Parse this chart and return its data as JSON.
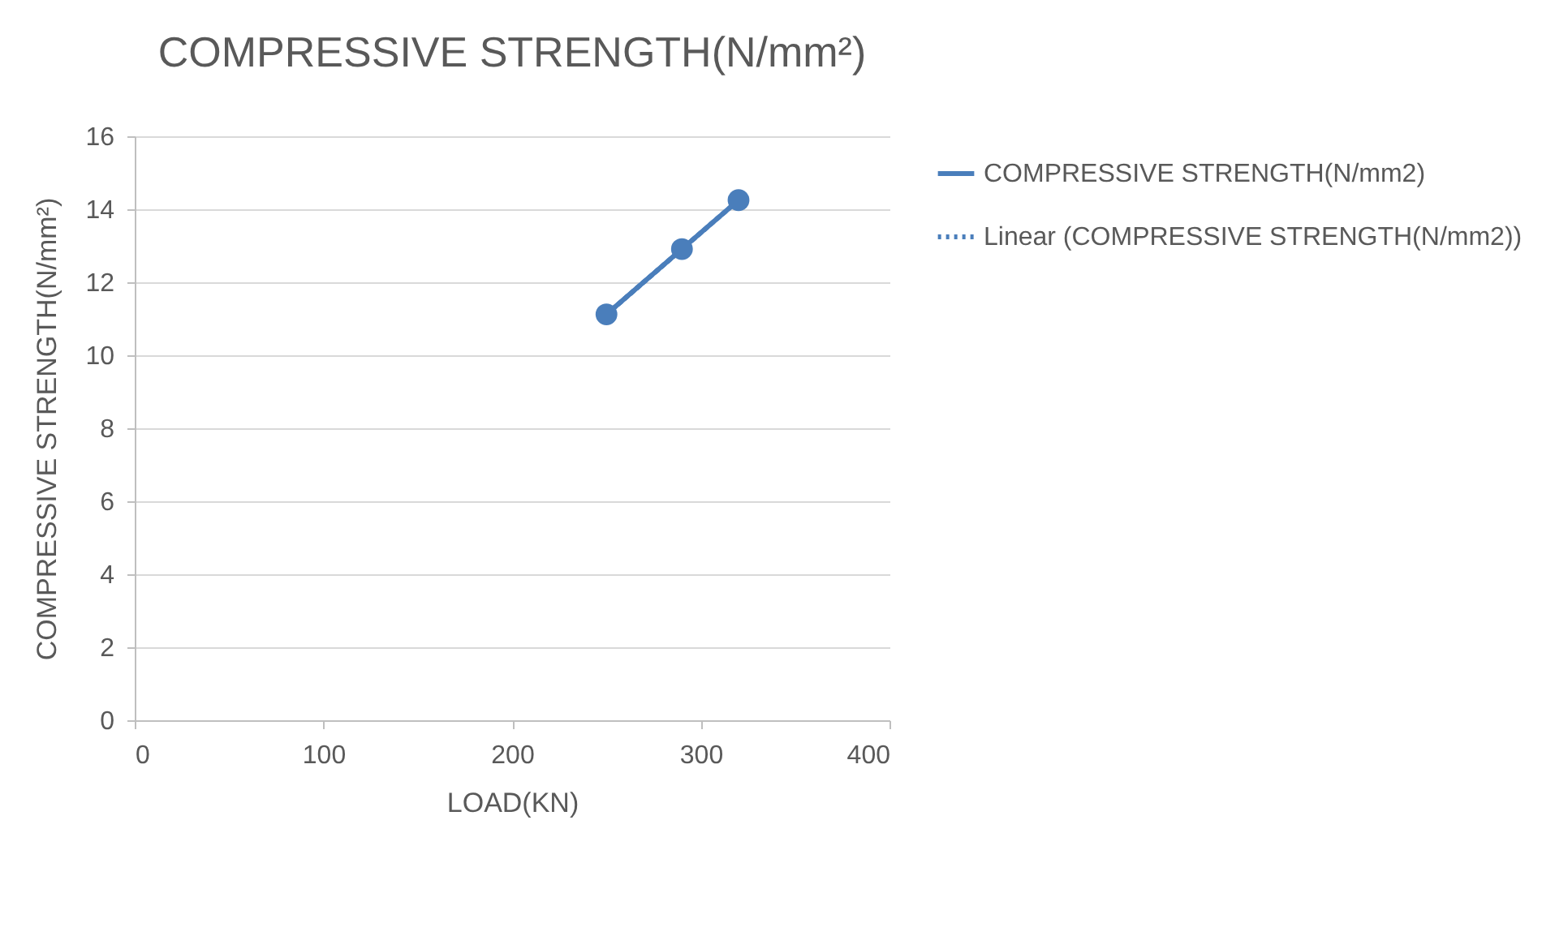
{
  "chart_data": {
    "type": "line",
    "title": "COMPRESSIVE STRENGTH(N/mm²)",
    "xlabel": "LOAD(KN)",
    "ylabel": "COMPRESSIVE STRENGTH(N/mm²)",
    "x": [
      250,
      290,
      320
    ],
    "series": [
      {
        "name": "COMPRESSIVE STRENGTH(N/mm2)",
        "color": "#4a7ebb",
        "values": [
          11.12,
          12.91,
          14.25
        ]
      },
      {
        "name": "Linear (COMPRESSIVE STRENGTH(N/mm2))",
        "color": "#4a7ebb",
        "x": [
          250,
          320
        ],
        "values": [
          11.12,
          14.25
        ],
        "line_style": "dotted",
        "marker": "none"
      }
    ],
    "xlim": [
      0,
      400
    ],
    "xticks": [
      0,
      100,
      200,
      300,
      400
    ],
    "ylim": [
      0,
      16
    ],
    "yticks": [
      0,
      2,
      4,
      6,
      8,
      10,
      12,
      14,
      16
    ],
    "grid": "y",
    "legend": "right",
    "marker": "circle",
    "line_style": "solid"
  }
}
